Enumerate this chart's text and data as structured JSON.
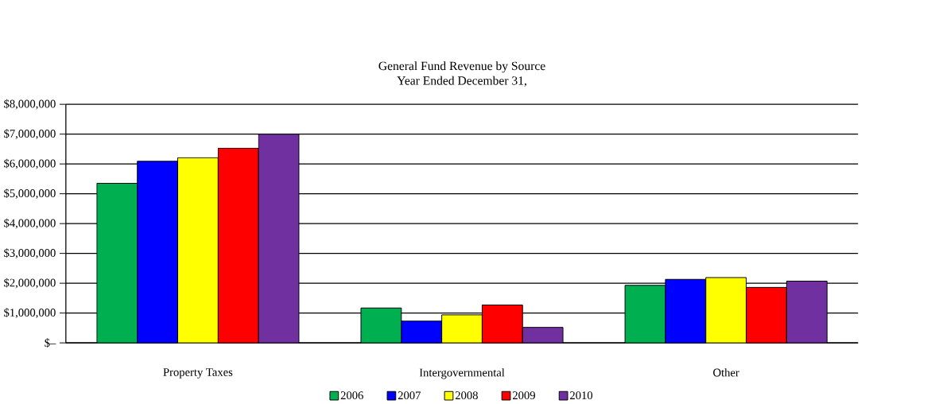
{
  "chart_data": {
    "type": "bar",
    "title": "General Fund Revenue by Source",
    "subtitle": "Year Ended December 31,",
    "categories": [
      "Property Taxes",
      "Intergovernmental",
      "Other"
    ],
    "series": [
      {
        "name": "2006",
        "color": "#00b050",
        "values": [
          5350000,
          1170000,
          1930000
        ]
      },
      {
        "name": "2007",
        "color": "#0000ff",
        "values": [
          6090000,
          730000,
          2130000
        ]
      },
      {
        "name": "2008",
        "color": "#ffff00",
        "values": [
          6210000,
          940000,
          2190000
        ]
      },
      {
        "name": "2009",
        "color": "#ff0000",
        "values": [
          6530000,
          1270000,
          1860000
        ]
      },
      {
        "name": "2010",
        "color": "#7030a0",
        "values": [
          7000000,
          520000,
          2070000
        ]
      }
    ],
    "ylim": [
      0,
      8000000
    ],
    "yticks": [
      {
        "value": 0,
        "label": "$–"
      },
      {
        "value": 1000000,
        "label": "$1,000,000"
      },
      {
        "value": 2000000,
        "label": "$2,000,000"
      },
      {
        "value": 3000000,
        "label": "$3,000,000"
      },
      {
        "value": 4000000,
        "label": "$4,000,000"
      },
      {
        "value": 5000000,
        "label": "$5,000,000"
      },
      {
        "value": 6000000,
        "label": "$6,000,000"
      },
      {
        "value": 7000000,
        "label": "$7,000,000"
      },
      {
        "value": 8000000,
        "label": "$8,000,000"
      }
    ],
    "grid": "y",
    "legend": "bottom"
  }
}
